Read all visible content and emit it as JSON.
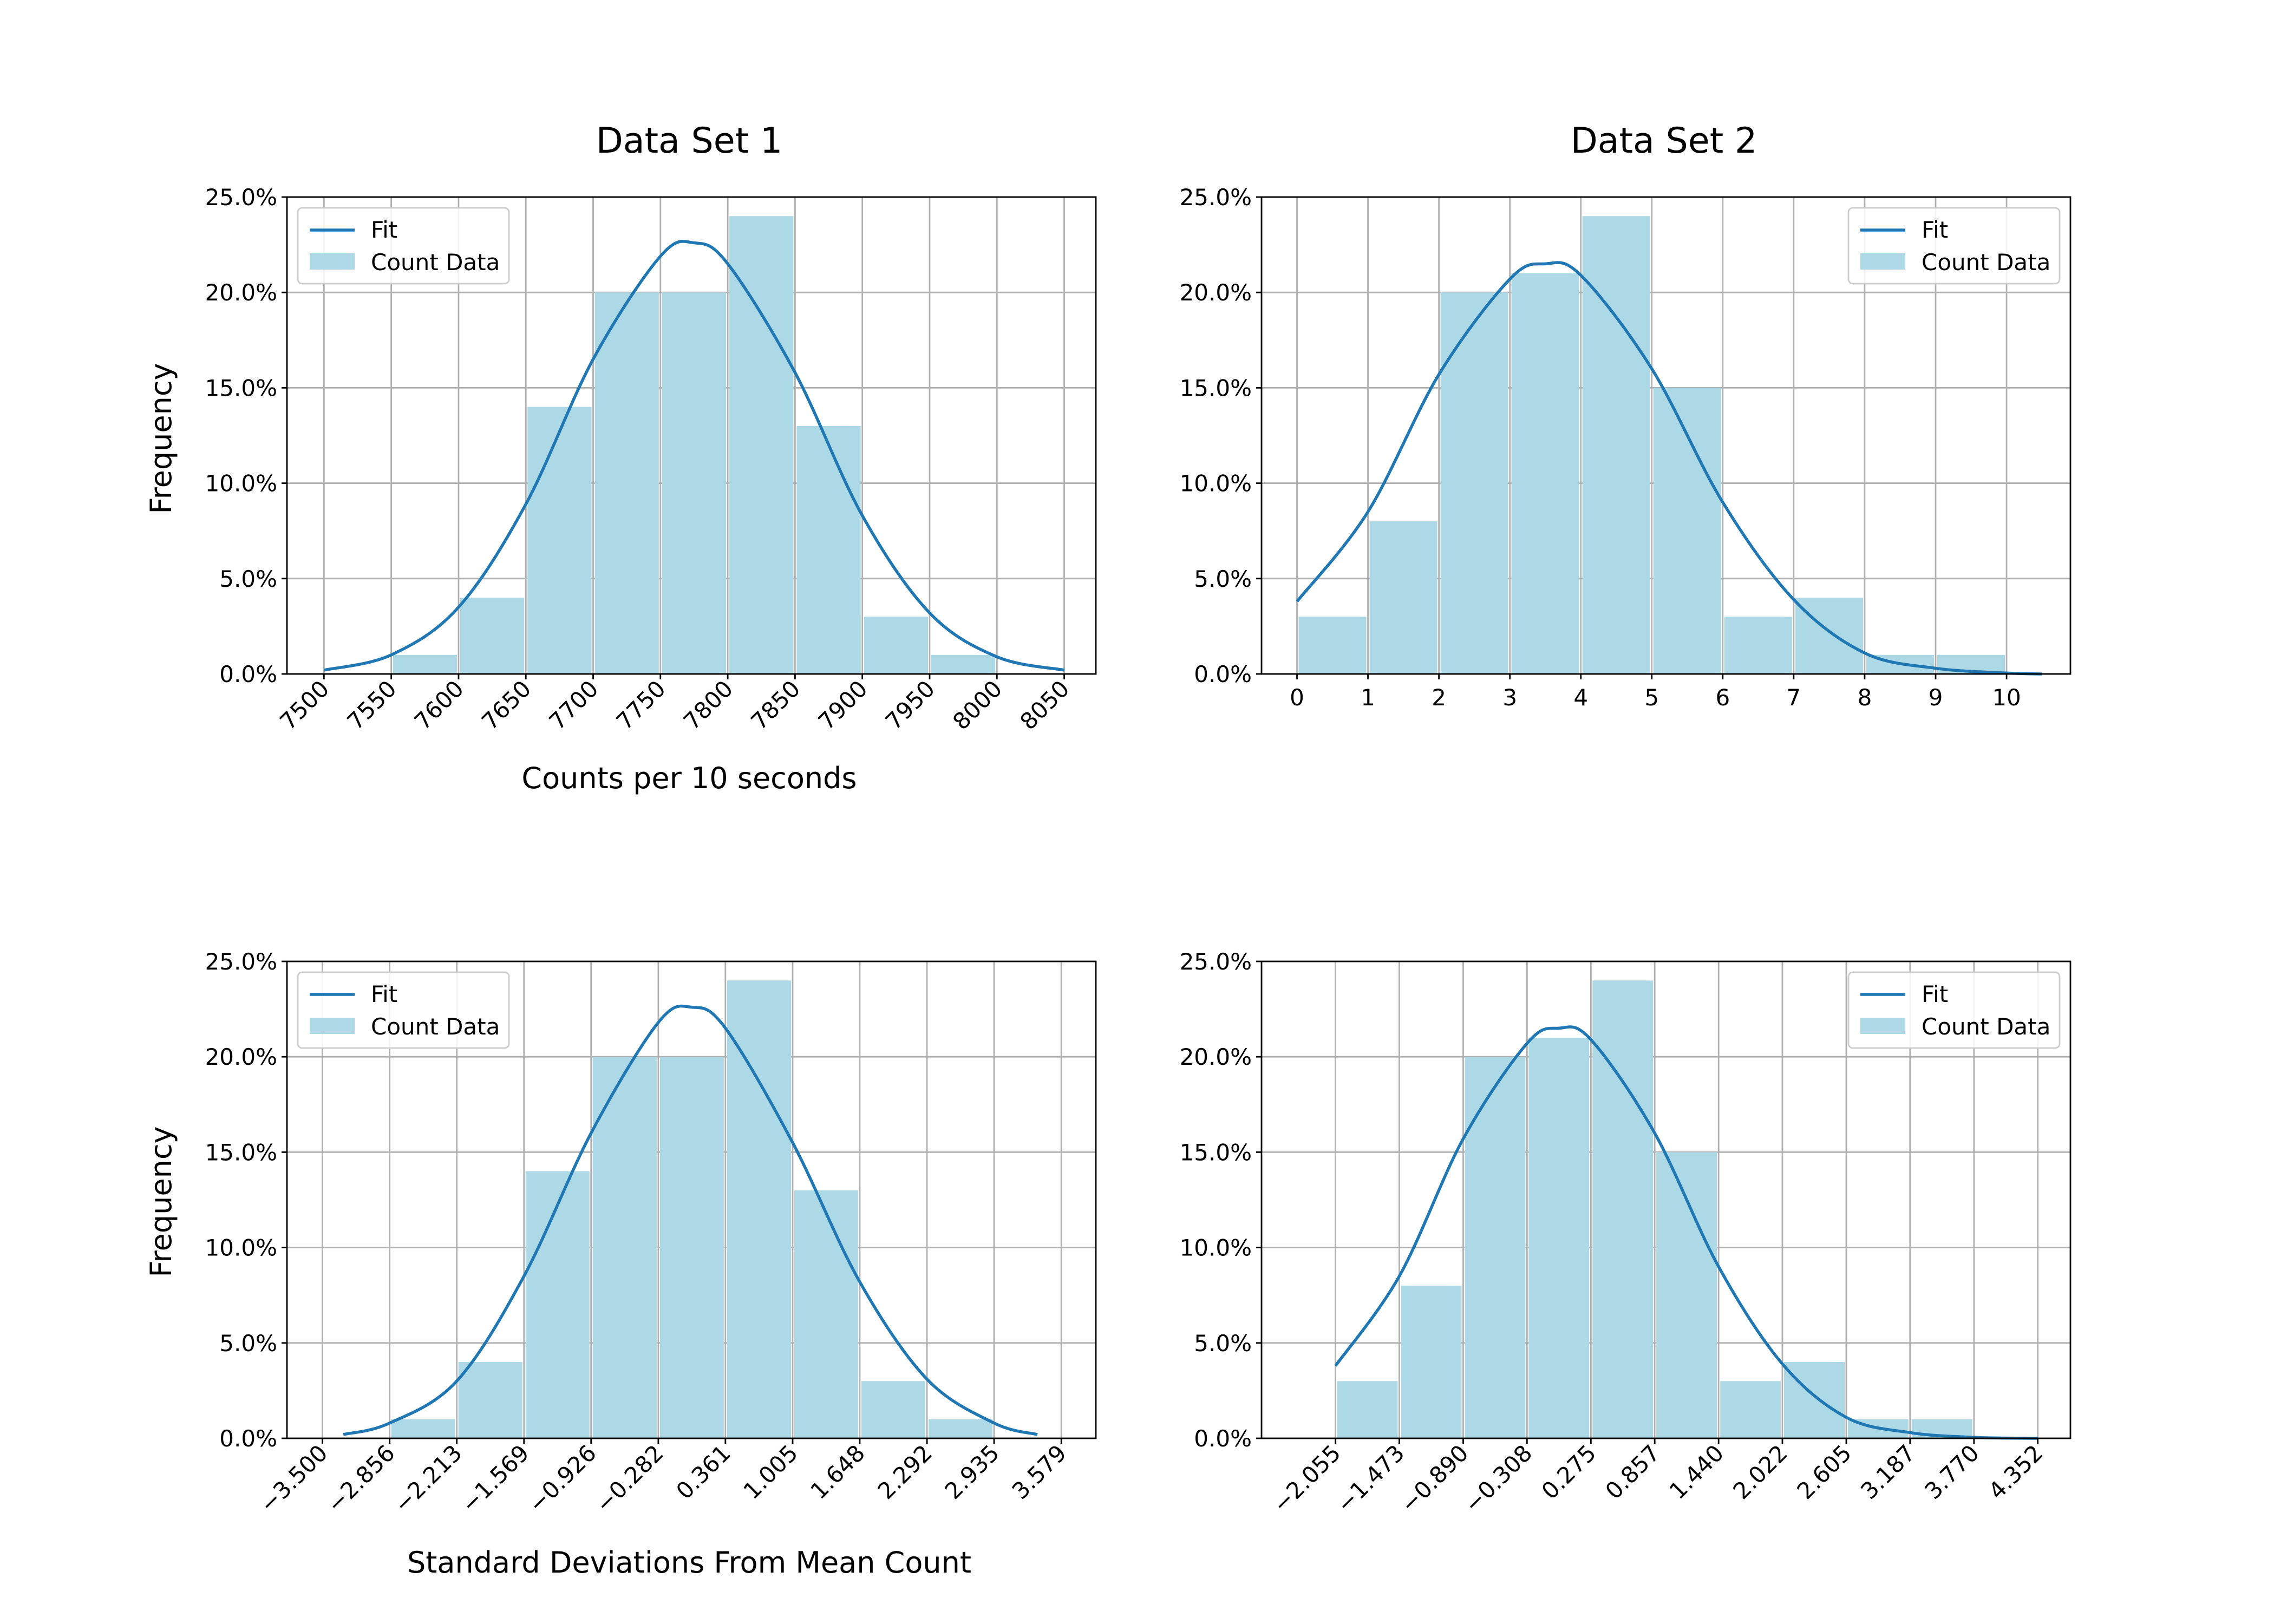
{
  "colors": {
    "bar": "#add8e6",
    "fit": "#1f77b4",
    "grid": "#b0b0b0",
    "background": "#ffffff"
  },
  "chart_data": [
    {
      "id": "ds1-counts",
      "type": "bar",
      "title": "Data Set 1",
      "xlabel": "Counts per 10 seconds",
      "ylabel": "Frequency",
      "x_tick_labels": [
        "7500",
        "7550",
        "7600",
        "7650",
        "7700",
        "7750",
        "7800",
        "7850",
        "7900",
        "7950",
        "8000",
        "8050"
      ],
      "x_tick_rotation": -45,
      "y_tick_labels": [
        "0.0%",
        "5.0%",
        "10.0%",
        "15.0%",
        "20.0%",
        "25.0%"
      ],
      "ylim": [
        0,
        25
      ],
      "grid": true,
      "legend": {
        "placement": "upper-left",
        "entries": [
          "Fit",
          "Count Data"
        ]
      },
      "series": [
        {
          "name": "Count Data",
          "type": "bar",
          "bins": [
            [
              7550,
              7600
            ],
            [
              7600,
              7650
            ],
            [
              7650,
              7700
            ],
            [
              7700,
              7750
            ],
            [
              7750,
              7800
            ],
            [
              7800,
              7850
            ],
            [
              7850,
              7900
            ],
            [
              7900,
              7950
            ],
            [
              7950,
              8000
            ]
          ],
          "values": [
            1,
            4,
            14,
            20,
            20,
            24,
            13,
            3,
            1
          ]
        },
        {
          "name": "Fit",
          "type": "line",
          "x": [
            7500,
            7550,
            7600,
            7650,
            7700,
            7750,
            7775,
            7800,
            7850,
            7900,
            7950,
            8000,
            8050
          ],
          "y": [
            0.2,
            1.0,
            3.5,
            8.9,
            16.5,
            21.9,
            22.6,
            21.5,
            15.8,
            8.3,
            3.2,
            0.9,
            0.2
          ]
        }
      ]
    },
    {
      "id": "ds2-counts",
      "type": "bar",
      "title": "Data Set 2",
      "xlabel": "",
      "ylabel": "",
      "x_tick_labels": [
        "0",
        "1",
        "2",
        "3",
        "4",
        "5",
        "6",
        "7",
        "8",
        "9",
        "10"
      ],
      "x_tick_rotation": 0,
      "y_tick_labels": [
        "0.0%",
        "5.0%",
        "10.0%",
        "15.0%",
        "20.0%",
        "25.0%"
      ],
      "ylim": [
        0,
        25
      ],
      "grid": true,
      "legend": {
        "placement": "upper-right",
        "entries": [
          "Fit",
          "Count Data"
        ]
      },
      "series": [
        {
          "name": "Count Data",
          "type": "bar",
          "bins": [
            [
              0,
              1
            ],
            [
              1,
              2
            ],
            [
              2,
              3
            ],
            [
              3,
              4
            ],
            [
              4,
              5
            ],
            [
              5,
              6
            ],
            [
              6,
              7
            ],
            [
              7,
              8
            ],
            [
              8,
              9
            ],
            [
              9,
              10
            ]
          ],
          "values": [
            3,
            8,
            20,
            21,
            24,
            15,
            3,
            4,
            1,
            1
          ]
        },
        {
          "name": "Fit",
          "type": "line",
          "x": [
            0,
            1,
            2,
            3,
            3.5,
            4,
            5,
            6,
            7,
            8,
            9,
            10,
            10.5
          ],
          "y": [
            3.8,
            8.5,
            15.7,
            20.7,
            21.5,
            20.9,
            16.0,
            9.0,
            3.9,
            1.1,
            0.3,
            0.05,
            0.0
          ]
        }
      ]
    },
    {
      "id": "ds1-sigma",
      "type": "bar",
      "title": "",
      "xlabel": "Standard Deviations From Mean Count",
      "ylabel": "Frequency",
      "x_tick_labels": [
        "−3.500",
        "−2.856",
        "−2.213",
        "−1.569",
        "−0.926",
        "−0.282",
        "0.361",
        "1.005",
        "1.648",
        "2.292",
        "2.935",
        "3.579"
      ],
      "x_tick_rotation": -45,
      "y_tick_labels": [
        "0.0%",
        "5.0%",
        "10.0%",
        "15.0%",
        "20.0%",
        "25.0%"
      ],
      "ylim": [
        0,
        25
      ],
      "grid": true,
      "legend": {
        "placement": "upper-left",
        "entries": [
          "Fit",
          "Count Data"
        ]
      },
      "series": [
        {
          "name": "Count Data",
          "type": "bar",
          "bins": [
            [
              -2.856,
              -2.213
            ],
            [
              -2.213,
              -1.569
            ],
            [
              -1.569,
              -0.926
            ],
            [
              -0.926,
              -0.282
            ],
            [
              -0.282,
              0.361
            ],
            [
              0.361,
              1.005
            ],
            [
              1.005,
              1.648
            ],
            [
              1.648,
              2.292
            ],
            [
              2.292,
              2.935
            ]
          ],
          "values": [
            1,
            4,
            14,
            20,
            20,
            24,
            13,
            3,
            1
          ]
        },
        {
          "name": "Fit",
          "type": "line",
          "x": [
            -3.3,
            -2.856,
            -2.213,
            -1.569,
            -0.926,
            -0.282,
            0.04,
            0.361,
            1.005,
            1.648,
            2.292,
            2.935,
            3.35
          ],
          "y": [
            0.2,
            0.8,
            3.0,
            8.5,
            16.0,
            21.8,
            22.6,
            21.5,
            15.5,
            8.2,
            3.1,
            0.8,
            0.2
          ]
        }
      ]
    },
    {
      "id": "ds2-sigma",
      "type": "bar",
      "title": "",
      "xlabel": "",
      "ylabel": "",
      "x_tick_labels": [
        "−2.055",
        "−1.473",
        "−0.890",
        "−0.308",
        "0.275",
        "0.857",
        "1.440",
        "2.022",
        "2.605",
        "3.187",
        "3.770",
        "4.352"
      ],
      "x_tick_rotation": -45,
      "y_tick_labels": [
        "0.0%",
        "5.0%",
        "10.0%",
        "15.0%",
        "20.0%",
        "25.0%"
      ],
      "ylim": [
        0,
        25
      ],
      "grid": true,
      "legend": {
        "placement": "upper-right",
        "entries": [
          "Fit",
          "Count Data"
        ]
      },
      "series": [
        {
          "name": "Count Data",
          "type": "bar",
          "bins": [
            [
              -2.055,
              -1.473
            ],
            [
              -1.473,
              -0.89
            ],
            [
              -0.89,
              -0.308
            ],
            [
              -0.308,
              0.275
            ],
            [
              0.275,
              0.857
            ],
            [
              0.857,
              1.44
            ],
            [
              1.44,
              2.022
            ],
            [
              2.022,
              2.605
            ],
            [
              2.605,
              3.187
            ],
            [
              3.187,
              3.77
            ]
          ],
          "values": [
            3,
            8,
            20,
            21,
            24,
            15,
            3,
            4,
            1,
            1
          ]
        },
        {
          "name": "Fit",
          "type": "line",
          "x": [
            -2.055,
            -1.473,
            -0.89,
            -0.308,
            -0.017,
            0.275,
            0.857,
            1.44,
            2.022,
            2.605,
            3.187,
            3.77,
            4.352
          ],
          "y": [
            3.8,
            8.5,
            15.7,
            20.7,
            21.5,
            20.9,
            16.0,
            9.0,
            3.9,
            1.1,
            0.3,
            0.05,
            0.0
          ]
        }
      ]
    }
  ]
}
